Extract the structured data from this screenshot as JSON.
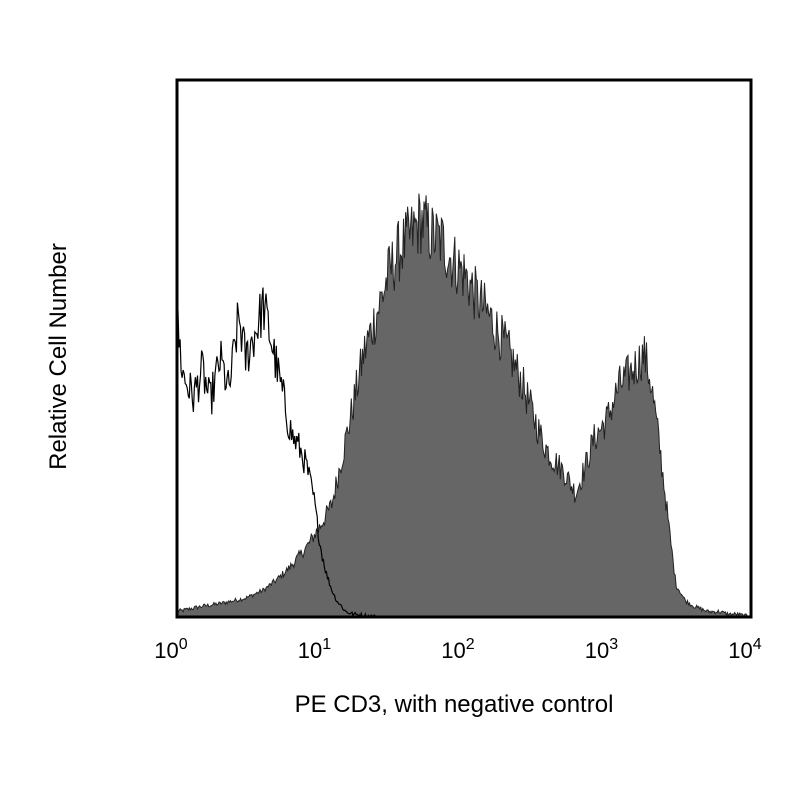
{
  "chart_data": {
    "type": "area",
    "title": "",
    "xlabel": "PE CD3, with negative control",
    "ylabel": "Relative Cell Number",
    "x_scale": "log",
    "xlim": [
      1,
      10000
    ],
    "ylim": [
      0,
      100
    ],
    "grid": false,
    "x_ticks": [
      {
        "value": 1,
        "base": "10",
        "exp": "0"
      },
      {
        "value": 10,
        "base": "10",
        "exp": "1"
      },
      {
        "value": 100,
        "base": "10",
        "exp": "2"
      },
      {
        "value": 1000,
        "base": "10",
        "exp": "3"
      },
      {
        "value": 10000,
        "base": "10",
        "exp": "4"
      }
    ],
    "series": [
      {
        "style": "filled",
        "color": "#666666",
        "x": [
          1,
          1.5,
          2,
          3,
          4,
          5,
          6,
          8,
          10,
          12,
          15,
          18,
          20,
          25,
          30,
          35,
          40,
          45,
          50,
          60,
          70,
          80,
          100,
          120,
          150,
          200,
          250,
          300,
          350,
          400,
          500,
          600,
          700,
          800,
          1000,
          1200,
          1500,
          1800,
          2000,
          2300,
          2700,
          3000,
          3500,
          4000,
          5000,
          6000,
          7000,
          8000,
          10000
        ],
        "y": [
          1,
          2,
          2.5,
          3.5,
          5,
          7,
          9,
          13,
          17,
          21,
          33,
          43,
          49,
          57,
          64,
          68,
          70,
          72,
          74,
          71,
          70,
          67,
          64,
          60,
          56,
          50,
          44,
          38,
          33,
          30,
          27,
          23,
          28,
          33,
          37,
          43,
          46,
          49,
          44,
          32,
          16,
          6,
          3,
          2,
          1,
          1,
          0.5,
          0.5,
          0
        ]
      },
      {
        "style": "outline",
        "color": "#000000",
        "x": [
          1,
          1.1,
          1.3,
          1.5,
          1.7,
          2,
          2.3,
          2.7,
          3,
          3.5,
          4,
          4.5,
          5,
          5.5,
          6,
          6.5,
          7,
          8,
          9,
          10,
          11,
          12,
          13,
          14,
          15,
          17,
          20,
          25
        ],
        "y": [
          55,
          45,
          41,
          46,
          40,
          48,
          42,
          56,
          48,
          53,
          58,
          52,
          46,
          41,
          36,
          33,
          32,
          28,
          22,
          13,
          8,
          5,
          3,
          2,
          1,
          0.5,
          0.3,
          0
        ]
      }
    ]
  }
}
